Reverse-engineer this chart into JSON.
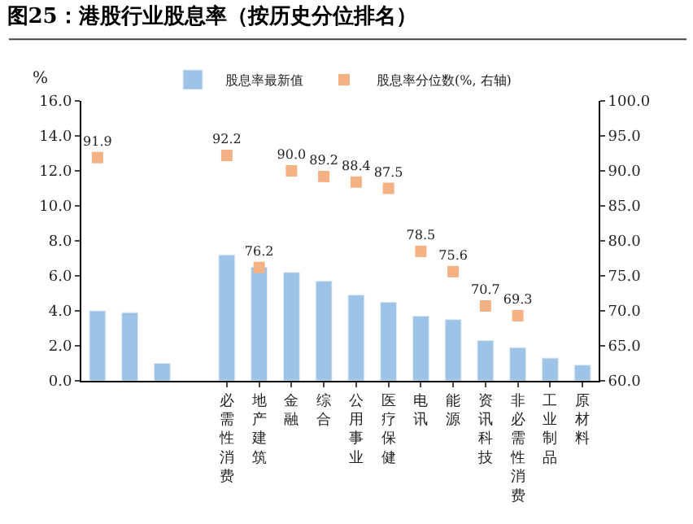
{
  "chart_data": {
    "type": "bar",
    "title": "图25：港股行业股息率（按历史分位排名）",
    "ylabel": "%",
    "categories": [
      null,
      null,
      null,
      null,
      "必需性消费",
      "地产建筑",
      "金融",
      "综合",
      "公用事业",
      "医疗保健",
      "电讯",
      "能源",
      "资讯科技",
      "非必需性消费",
      "工业制品",
      "原材料"
    ],
    "series": [
      {
        "name": "股息率最新值",
        "color": "#9dc3e6",
        "values": [
          4.0,
          3.9,
          1.0,
          null,
          7.2,
          6.5,
          6.2,
          5.7,
          4.9,
          4.5,
          3.7,
          3.5,
          2.3,
          1.9,
          1.3,
          0.9
        ]
      },
      {
        "name": "股息率分位数(%, 右轴)",
        "type": "scatter",
        "axis": "y2",
        "color": "#f4b183",
        "marker": "square",
        "values": [
          91.9,
          null,
          null,
          null,
          92.2,
          76.2,
          90.0,
          89.2,
          88.4,
          87.5,
          78.5,
          75.6,
          70.7,
          69.3,
          null,
          null
        ],
        "value_labels": [
          "91.9",
          null,
          null,
          null,
          "92.2",
          "76.2",
          "90.0",
          "89.2",
          "88.4",
          "87.5",
          "78.5",
          "75.6",
          "70.7",
          "69.3",
          null,
          null
        ]
      }
    ],
    "ylim": [
      0,
      16
    ],
    "yticks": [
      {
        "value": 0,
        "label": "0.0"
      },
      {
        "value": 2,
        "label": "2.0"
      },
      {
        "value": 4,
        "label": "4.0"
      },
      {
        "value": 6,
        "label": "6.0"
      },
      {
        "value": 8,
        "label": "8.0"
      },
      {
        "value": 10,
        "label": "10.0"
      },
      {
        "value": 12,
        "label": "12.0"
      },
      {
        "value": 14,
        "label": "14.0"
      },
      {
        "value": 16,
        "label": "16.0"
      }
    ],
    "y2lim": [
      60,
      100
    ],
    "y2ticks": [
      {
        "value": 60,
        "label": "60.0"
      },
      {
        "value": 65,
        "label": "65.0"
      },
      {
        "value": 70,
        "label": "70.0"
      },
      {
        "value": 75,
        "label": "75.0"
      },
      {
        "value": 80,
        "label": "80.0"
      },
      {
        "value": 85,
        "label": "85.0"
      },
      {
        "value": 90,
        "label": "90.0"
      },
      {
        "value": 95,
        "label": "95.0"
      },
      {
        "value": 100,
        "label": "100.0"
      }
    ],
    "legend": "top"
  }
}
